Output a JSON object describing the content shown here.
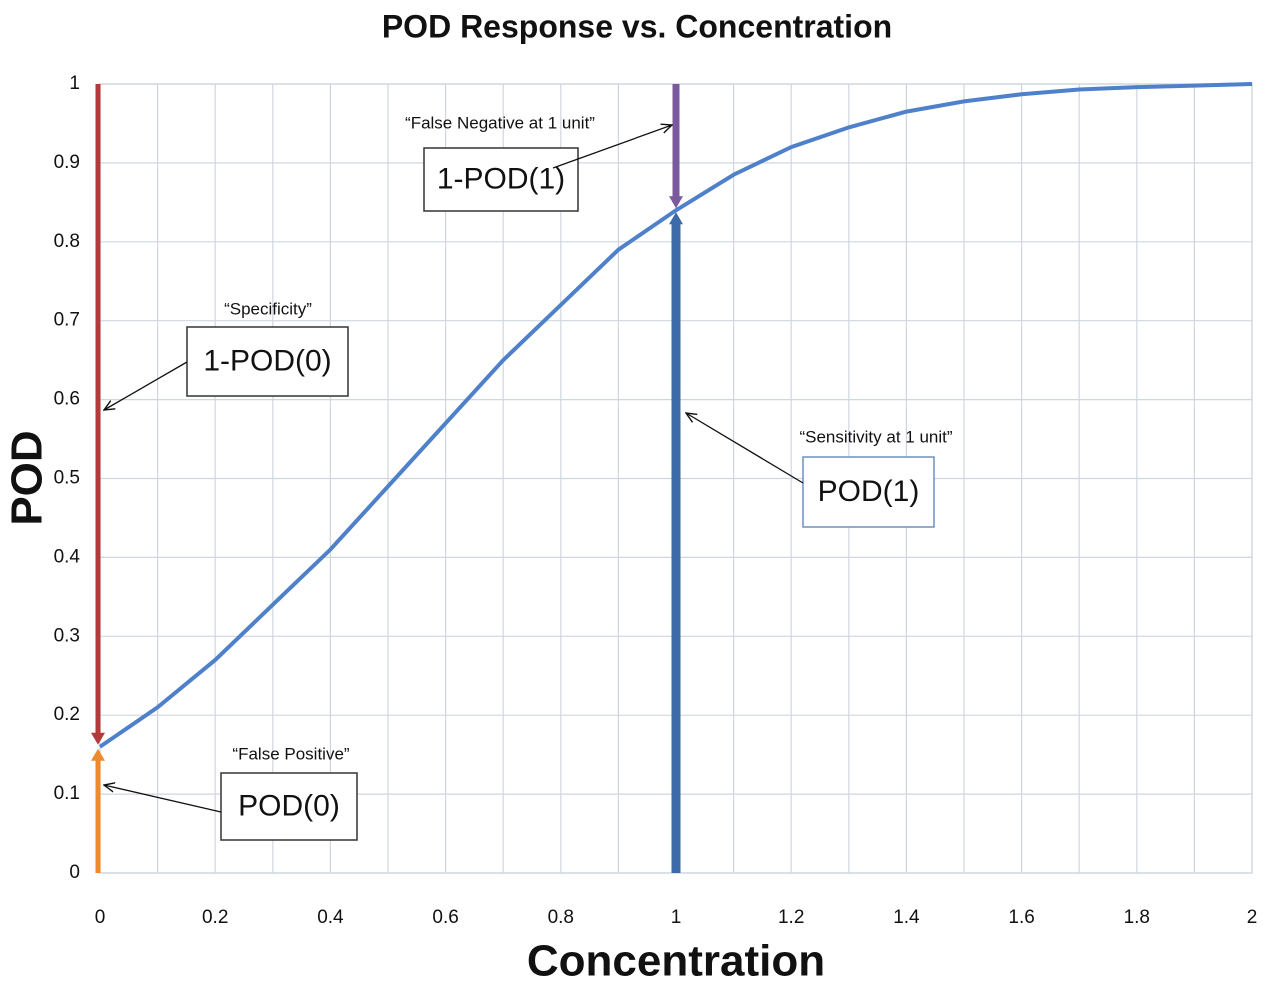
{
  "chart_data": {
    "type": "line",
    "title": "POD Response vs. Concentration",
    "x_label": "Concentration",
    "y_label": "POD",
    "x": [
      0,
      0.1,
      0.2,
      0.3,
      0.4,
      0.5,
      0.6,
      0.7,
      0.8,
      0.9,
      1,
      1.1,
      1.2,
      1.3,
      1.4,
      1.5,
      1.6,
      1.7,
      1.8,
      1.9,
      2
    ],
    "values": [
      0.16,
      0.21,
      0.27,
      0.34,
      0.41,
      0.49,
      0.57,
      0.65,
      0.72,
      0.79,
      0.84,
      0.885,
      0.92,
      0.945,
      0.965,
      0.978,
      0.987,
      0.993,
      0.996,
      0.998,
      1.0
    ],
    "color": "#4f81cb",
    "xlim": [
      0,
      2
    ],
    "ylim": [
      0,
      1
    ],
    "xticks": [
      0,
      0.2,
      0.4,
      0.6,
      0.8,
      1,
      1.2,
      1.4,
      1.6,
      1.8,
      2
    ],
    "x_minor_ticks": [
      0.1,
      0.3,
      0.5,
      0.7,
      0.9,
      1.1,
      1.3,
      1.5,
      1.7,
      1.9
    ],
    "yticks": [
      0,
      0.1,
      0.2,
      0.3,
      0.4,
      0.5,
      0.6,
      0.7,
      0.8,
      0.9,
      1
    ],
    "grid": true,
    "annotations": [
      {
        "caption": "“False Negative at 1 unit”",
        "label": "1-POD(1)"
      },
      {
        "caption": "“Specificity”",
        "label": "1-POD(0)"
      },
      {
        "caption": "“Sensitivity at 1 unit”",
        "label": "POD(1)"
      },
      {
        "caption": "“False Positive”",
        "label": "POD(0)"
      }
    ]
  }
}
